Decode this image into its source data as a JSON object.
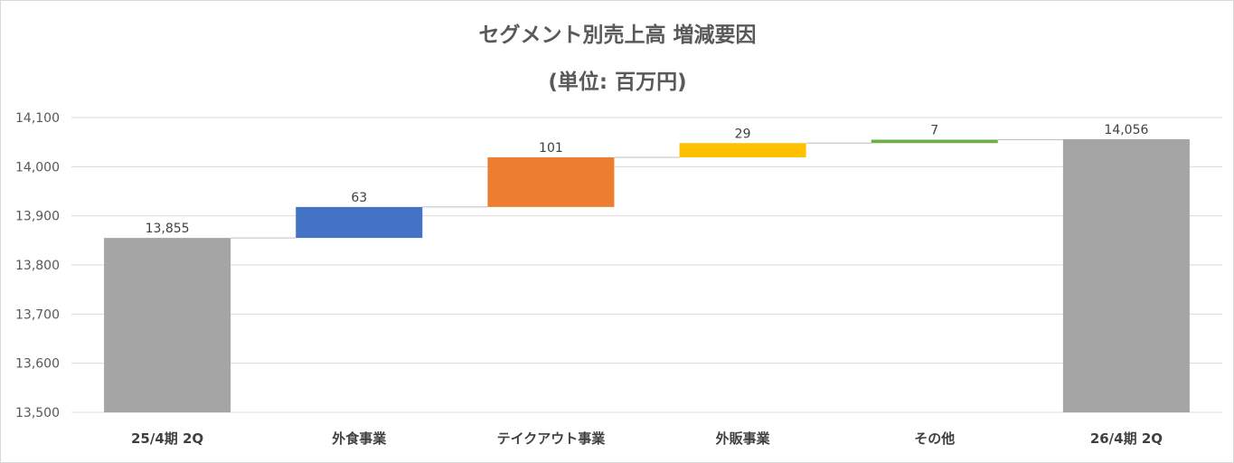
{
  "chart_data": {
    "type": "waterfall",
    "title": "セグメント別売上高 増減要因",
    "subtitle": "(単位: 百万円)",
    "categories": [
      "25/4期 2Q",
      "外食事業",
      "テイクアウト事業",
      "外販事業",
      "その他",
      "26/4期 2Q"
    ],
    "values": [
      13855,
      63,
      101,
      29,
      7,
      14056
    ],
    "kinds": [
      "total",
      "delta",
      "delta",
      "delta",
      "delta",
      "total"
    ],
    "data_labels": [
      "13,855",
      "63",
      "101",
      "29",
      "7",
      "14,056"
    ],
    "colors": [
      "#a5a5a5",
      "#4472c4",
      "#ed7d31",
      "#ffc000",
      "#70ad47",
      "#a5a5a5"
    ],
    "ylim": [
      13500,
      14100
    ],
    "yticks": [
      13500,
      13600,
      13700,
      13800,
      13900,
      14000,
      14100
    ],
    "ytick_labels": [
      "13,500",
      "13,600",
      "13,700",
      "13,800",
      "13,900",
      "14,000",
      "14,100"
    ],
    "grid": true,
    "legend": "none"
  }
}
